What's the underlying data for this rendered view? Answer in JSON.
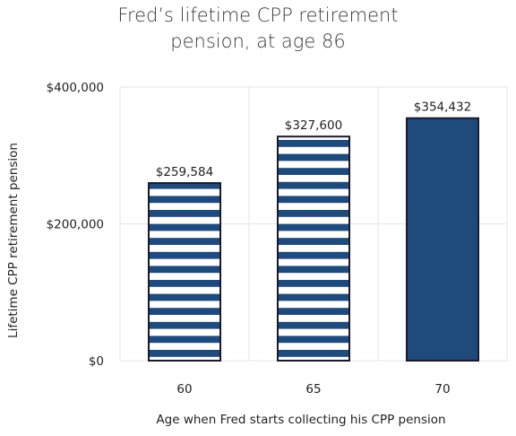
{
  "chart_data": {
    "type": "bar",
    "title_lines": [
      "Fred’s lifetime CPP retirement",
      "pension, at age 86"
    ],
    "xlabel": "Age when Fred starts collecting his CPP pension",
    "ylabel": "Lifetime  CPP retirement pension",
    "categories": [
      "60",
      "65",
      "70"
    ],
    "values": [
      259584,
      327600,
      354432
    ],
    "data_labels": [
      "$259,584",
      "$327,600",
      "$354,432"
    ],
    "ylim": [
      0,
      400000
    ],
    "yticks": [
      0,
      200000,
      400000
    ],
    "ytick_labels": [
      "$0",
      "$200,000",
      "$400,000"
    ],
    "bar_styles": [
      "striped",
      "striped",
      "solid"
    ],
    "grid": true,
    "colors": {
      "bar_fill": "#1f4a7c",
      "bar_edge": "#1a1a2e",
      "stripe_gap": "#ffffff",
      "grid": "#e6e6e6"
    }
  }
}
